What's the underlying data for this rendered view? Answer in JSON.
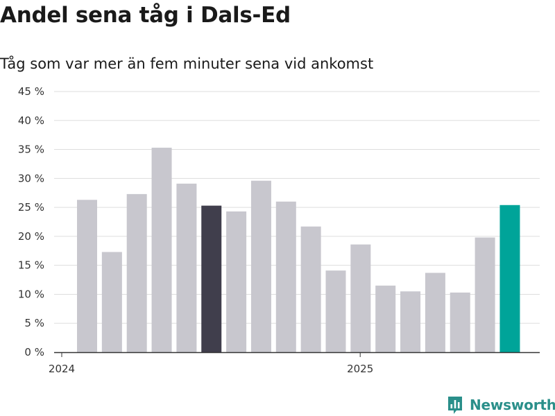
{
  "title": "Andel sena tåg i Dals-Ed",
  "subtitle": "Tåg som var mer än fem minuter sena vid ankomst",
  "brand": {
    "name": "Newsworthy",
    "icon": "newsworthy-logo-icon"
  },
  "colors": {
    "bar_default": "#c8c7ce",
    "bar_highlight_dark": "#403e4c",
    "bar_highlight_accent": "#00a499",
    "gridline": "#dddddd",
    "axis": "#333333",
    "brand": "#2a8f8a"
  },
  "chart_data": {
    "type": "bar",
    "title": "Andel sena tåg i Dals-Ed",
    "subtitle": "Tåg som var mer än fem minuter sena vid ankomst",
    "xlabel": "",
    "ylabel": "",
    "ylim": [
      0,
      45
    ],
    "y_ticks": [
      0,
      5,
      10,
      15,
      20,
      25,
      30,
      35,
      40,
      45
    ],
    "y_tick_labels": [
      "0 %",
      "5 %",
      "10 %",
      "15 %",
      "20 %",
      "25 %",
      "30 %",
      "35 %",
      "40 %",
      "45 %"
    ],
    "x_tick_labels": [
      "2024",
      "2025"
    ],
    "categories": [
      "2024-01",
      "2024-02",
      "2024-03",
      "2024-04",
      "2024-05",
      "2024-06",
      "2024-07",
      "2024-08",
      "2024-09",
      "2024-10",
      "2024-11",
      "2024-12",
      "2025-01",
      "2025-02",
      "2025-03",
      "2025-04",
      "2025-05",
      "2025-06"
    ],
    "values": [
      26.3,
      17.3,
      27.3,
      35.3,
      29.1,
      25.3,
      24.3,
      29.6,
      26.0,
      21.7,
      14.1,
      18.6,
      11.5,
      10.5,
      13.7,
      10.3,
      19.8,
      25.4
    ],
    "highlight": [
      {
        "category": "2024-06",
        "style": "dark"
      },
      {
        "category": "2025-06",
        "style": "accent"
      }
    ],
    "grid": true,
    "legend": "none"
  }
}
